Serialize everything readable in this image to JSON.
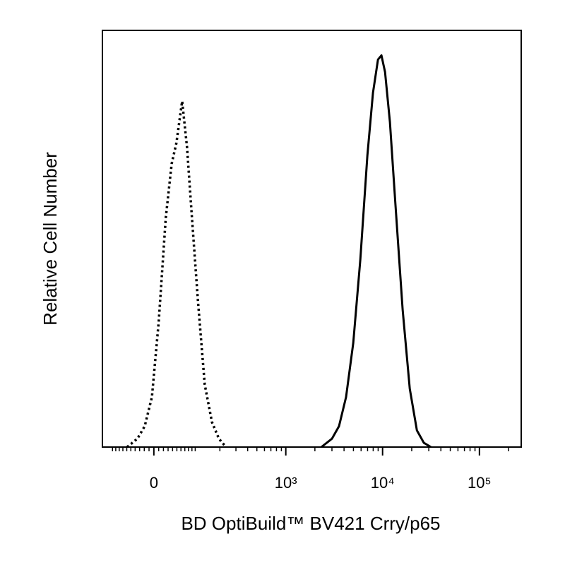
{
  "chart_data": {
    "type": "histogram-overlay",
    "x_label": "BD OptiBuild™ BV421 Crry/p65",
    "y_label": "Relative Cell Number",
    "xscale": "biexponential",
    "xlim": [
      -135,
      270000
    ],
    "ylim": [
      0,
      100
    ],
    "xticks": [
      {
        "value": 0,
        "label": "0"
      },
      {
        "value": 1000,
        "label": "10³"
      },
      {
        "value": 10000,
        "label": "10⁴"
      },
      {
        "value": 100000,
        "label": "10⁵"
      }
    ],
    "xminorticks": [
      -100,
      -90,
      -80,
      -70,
      -60,
      -50,
      -40,
      -30,
      -20,
      -10,
      10,
      20,
      30,
      40,
      50,
      60,
      70,
      80,
      90,
      100,
      200,
      300,
      400,
      500,
      600,
      700,
      800,
      900,
      2000,
      3000,
      4000,
      5000,
      6000,
      7000,
      8000,
      9000,
      20000,
      30000,
      40000,
      50000,
      60000,
      70000,
      80000,
      90000,
      200000
    ],
    "series": [
      {
        "style": "dotted",
        "color": "#000000",
        "x": [
          -59,
          -35,
          -19,
          -4,
          10,
          25,
          38,
          49,
          63,
          76,
          90,
          109,
          133,
          162,
          195,
          234
        ],
        "values": [
          0,
          2,
          5,
          12,
          30,
          55,
          68,
          73,
          83,
          72,
          55,
          35,
          15,
          6,
          2,
          0
        ]
      },
      {
        "style": "solid",
        "color": "#000000",
        "x": [
          2330,
          3000,
          3550,
          4200,
          4980,
          5890,
          6970,
          7960,
          8960,
          9740,
          10600,
          11900,
          13600,
          16100,
          19100,
          22600,
          26700,
          31600
        ],
        "values": [
          0,
          2,
          5,
          12,
          25,
          45,
          70,
          85,
          93,
          94,
          90,
          78,
          58,
          33,
          14,
          4,
          1,
          0
        ]
      }
    ]
  }
}
